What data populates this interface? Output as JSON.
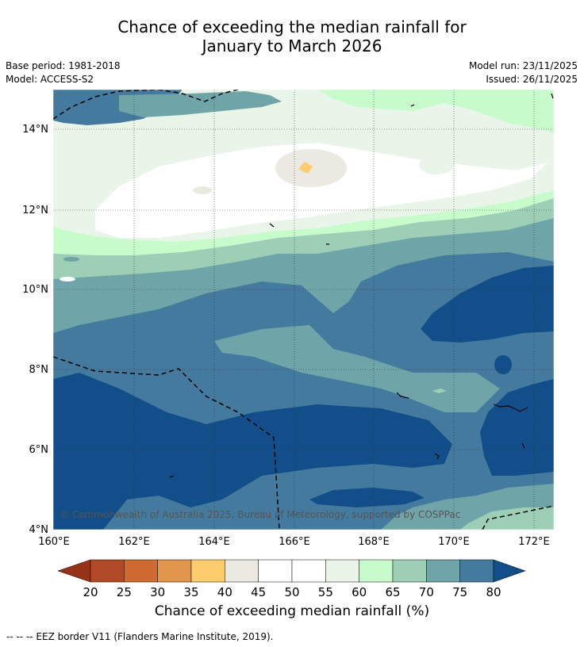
{
  "title_line1": "Chance of exceeding the median rainfall for",
  "title_line2": "January to March 2026",
  "base_period": "Base period: 1981-2018",
  "model": "Model: ACCESS-S2",
  "model_run": "Model run: 23/11/2025",
  "issued": "Issued: 26/11/2025",
  "copyright": "© Commonwealth of Australia 2025, Bureau of Meteorology, supported by COSPPac",
  "lon_labels": [
    "160°E",
    "162°E",
    "164°E",
    "166°E",
    "168°E",
    "170°E",
    "172°E"
  ],
  "lat_labels": [
    "4°N",
    "6°N",
    "8°N",
    "10°N",
    "12°N",
    "14°N"
  ],
  "colorbar": {
    "ticks": [
      "20",
      "25",
      "30",
      "35",
      "40",
      "45",
      "50",
      "55",
      "60",
      "65",
      "70",
      "75",
      "80"
    ],
    "colors": [
      "#b04a26",
      "#cf6a33",
      "#e2964b",
      "#fdcd6d",
      "#ece8e2",
      "#ffffff",
      "#ffffff",
      "#eaf5ea",
      "#c8fbcb",
      "#9dcfb6",
      "#6fa4a8",
      "#447a9d"
    ],
    "under_color": "#973218",
    "over_color": "#124e8a",
    "label": "Chance of exceeding median rainfall (%)"
  },
  "legend_text": "--  --  -- EEZ border V11 (Flanders Marine Institute, 2019).",
  "map_colors": {
    "c45": "#ece8e2",
    "c50": "#ffffff",
    "c55": "#eaf5ea",
    "c60": "#c8fbcb",
    "c65": "#9dcfb6",
    "c70": "#6fa4a8",
    "c75": "#447a9d",
    "c80": "#124e8a",
    "c35": "#fdcd6d"
  }
}
